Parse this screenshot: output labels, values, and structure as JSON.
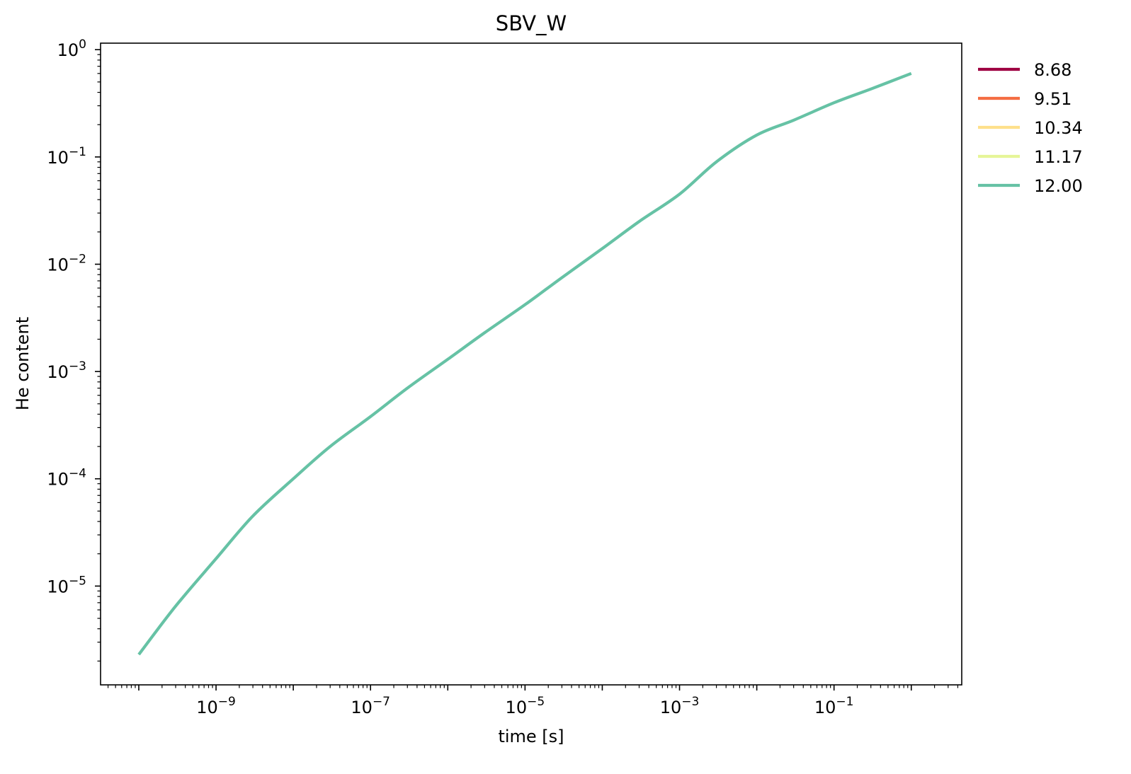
{
  "chart_data": {
    "type": "line",
    "title": "SBV_W",
    "xlabel": "time [s]",
    "ylabel": "He content",
    "xscale": "log",
    "yscale": "log",
    "xlim": [
      3.2e-11,
      4.5
    ],
    "ylim": [
      1.2e-06,
      1.15
    ],
    "x_ticks": [
      {
        "value": 1e-09,
        "base": "10",
        "exp": "−9"
      },
      {
        "value": 1e-07,
        "base": "10",
        "exp": "−7"
      },
      {
        "value": 1e-05,
        "base": "10",
        "exp": "−5"
      },
      {
        "value": 0.001,
        "base": "10",
        "exp": "−3"
      },
      {
        "value": 0.1,
        "base": "10",
        "exp": "−1"
      }
    ],
    "y_ticks": [
      {
        "value": 1e-05,
        "base": "10",
        "exp": "−5"
      },
      {
        "value": 0.0001,
        "base": "10",
        "exp": "−4"
      },
      {
        "value": 0.001,
        "base": "10",
        "exp": "−3"
      },
      {
        "value": 0.01,
        "base": "10",
        "exp": "−2"
      },
      {
        "value": 0.1,
        "base": "10",
        "exp": "−1"
      },
      {
        "value": 1,
        "base": "10",
        "exp": "0"
      }
    ],
    "legend_position": "outside-right",
    "grid": false,
    "series": [
      {
        "name": "8.68",
        "color": "#9e0142",
        "x": [],
        "y": []
      },
      {
        "name": "9.51",
        "color": "#f46d43",
        "x": [],
        "y": []
      },
      {
        "name": "10.34",
        "color": "#fee08b",
        "x": [],
        "y": []
      },
      {
        "name": "11.17",
        "color": "#e6f598",
        "x": [],
        "y": []
      },
      {
        "name": "12.00",
        "color": "#66c2a5",
        "x": [
          1e-10,
          3e-10,
          1e-09,
          3e-09,
          1e-08,
          3e-08,
          1e-07,
          3e-07,
          1e-06,
          3e-06,
          1e-05,
          3e-05,
          0.0001,
          0.0003,
          0.001,
          0.003,
          0.01,
          0.03,
          0.1,
          0.3,
          1
        ],
        "y": [
          2.3e-06,
          6.5e-06,
          1.8e-05,
          4.5e-05,
          0.0001,
          0.0002,
          0.00038,
          0.0007,
          0.0013,
          0.0023,
          0.0042,
          0.0075,
          0.014,
          0.025,
          0.045,
          0.09,
          0.16,
          0.22,
          0.32,
          0.43,
          0.6
        ]
      }
    ]
  }
}
